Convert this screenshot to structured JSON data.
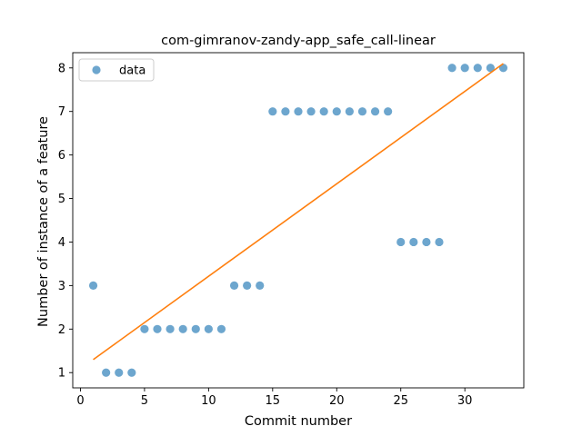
{
  "chart_data": {
    "type": "scatter",
    "title": "com-gimranov-zandy-app_safe_call-linear",
    "xlabel": "Commit number",
    "ylabel": "Number of instance of a feature",
    "xlim": [
      -0.6,
      34.6
    ],
    "ylim": [
      0.65,
      8.35
    ],
    "xticks": [
      0,
      5,
      10,
      15,
      20,
      25,
      30
    ],
    "yticks": [
      1,
      2,
      3,
      4,
      5,
      6,
      7,
      8
    ],
    "legend_position": "upper-left",
    "grid": false,
    "series": [
      {
        "name": "data",
        "kind": "scatter",
        "color": "#1f77b4",
        "x": [
          1,
          2,
          3,
          4,
          5,
          6,
          7,
          8,
          9,
          10,
          11,
          12,
          13,
          14,
          15,
          16,
          17,
          18,
          19,
          20,
          21,
          22,
          23,
          24,
          25,
          26,
          27,
          28,
          29,
          30,
          31,
          32,
          33
        ],
        "y": [
          3,
          1,
          1,
          1,
          2,
          2,
          2,
          2,
          2,
          2,
          2,
          3,
          3,
          3,
          7,
          7,
          7,
          7,
          7,
          7,
          7,
          7,
          7,
          7,
          4,
          4,
          4,
          4,
          8,
          8,
          8,
          8,
          8
        ]
      },
      {
        "kind": "line",
        "color": "#ff7f0e",
        "x": [
          1,
          33
        ],
        "y": [
          1.3,
          8.1
        ]
      }
    ]
  }
}
